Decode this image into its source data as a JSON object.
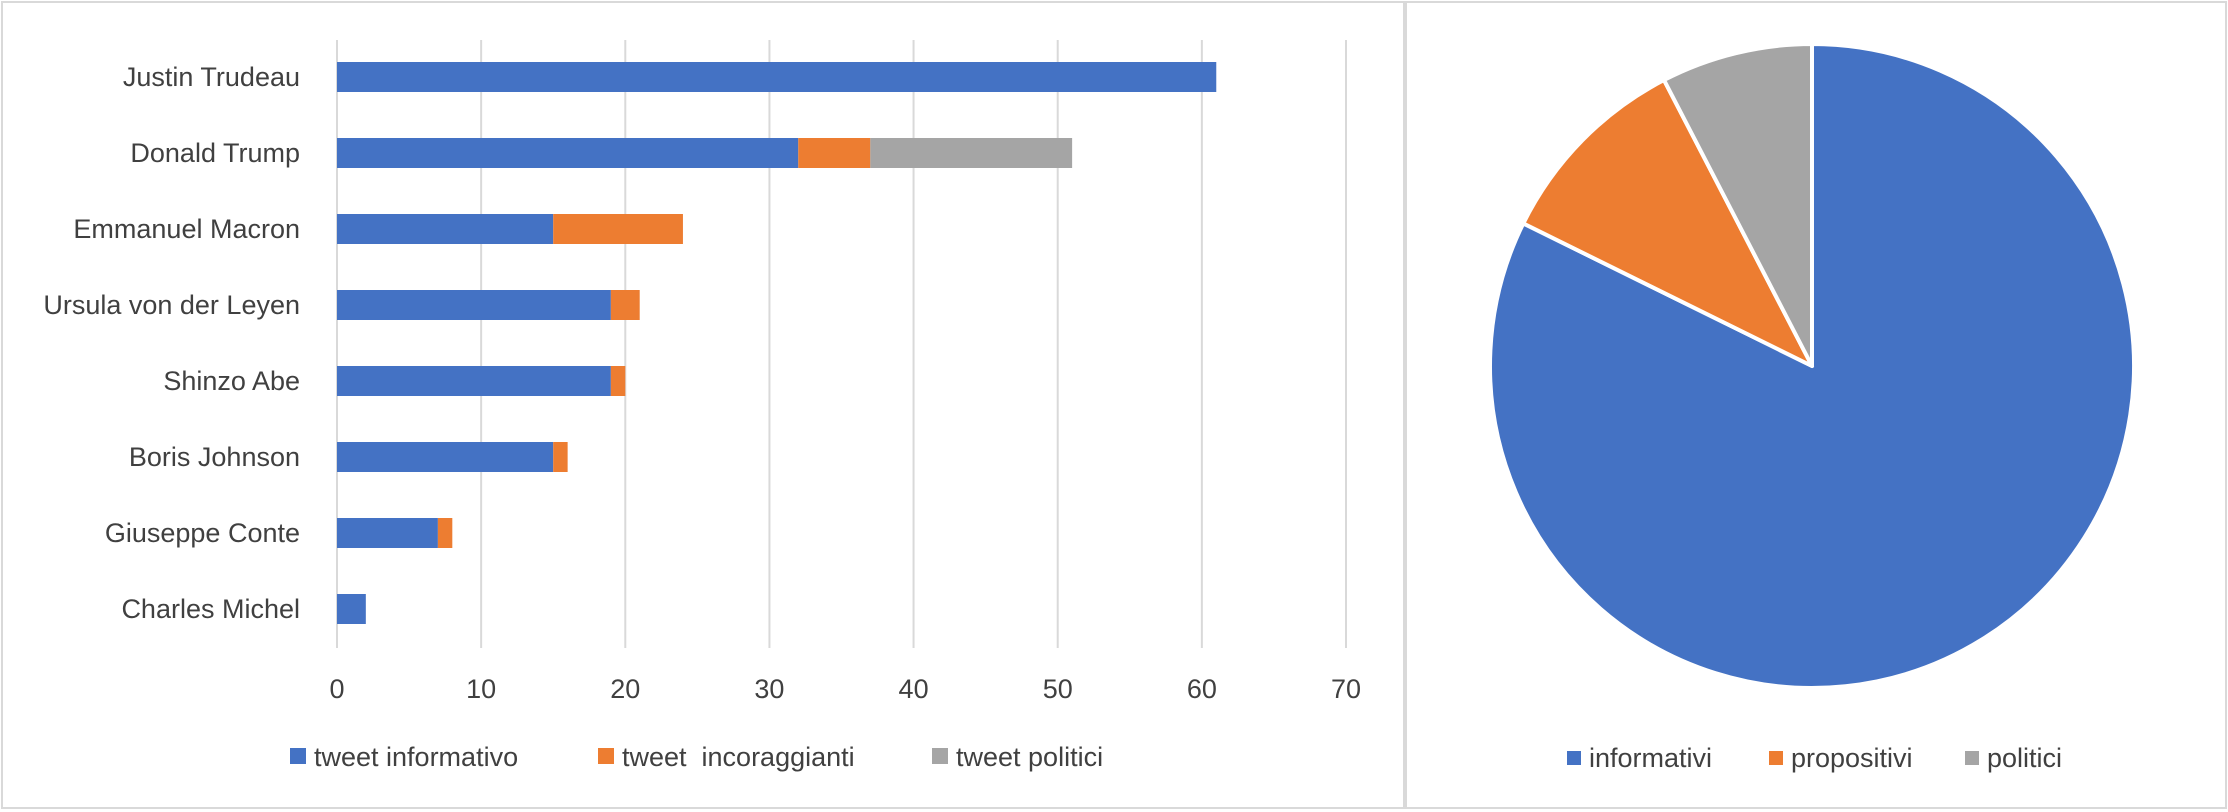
{
  "colors": {
    "blue": "#4472C4",
    "orange": "#ED7D31",
    "gray": "#A5A5A5",
    "gridline": "#D9D9D9",
    "text": "#404040",
    "border": "#D9D9D9"
  },
  "chart_data": [
    {
      "type": "bar",
      "orientation": "horizontal",
      "stacked": true,
      "categories": [
        "Justin Trudeau",
        "Donald Trump",
        "Emmanuel Macron",
        "Ursula von der Leyen",
        "Shinzo Abe",
        "Boris Johnson",
        "Giuseppe Conte",
        "Charles Michel"
      ],
      "series": [
        {
          "name": "tweet informativo",
          "color": "#4472C4",
          "values": [
            61,
            32,
            15,
            19,
            19,
            15,
            7,
            2
          ]
        },
        {
          "name": "tweet  incoraggianti",
          "color": "#ED7D31",
          "values": [
            0,
            5,
            9,
            2,
            1,
            1,
            1,
            0
          ]
        },
        {
          "name": "tweet politici",
          "color": "#A5A5A5",
          "values": [
            0,
            14,
            0,
            0,
            0,
            0,
            0,
            0
          ]
        }
      ],
      "xlim": [
        0,
        70
      ],
      "xticks": [
        "0",
        "10",
        "20",
        "30",
        "40",
        "50",
        "60",
        "70"
      ],
      "grid": true,
      "legend": "bottom",
      "title": "",
      "xlabel": "",
      "ylabel": ""
    },
    {
      "type": "pie",
      "categories": [
        "informativi",
        "propositivi",
        "politici"
      ],
      "values": [
        82.3,
        10.1,
        7.6
      ],
      "colors": [
        "#4472C4",
        "#ED7D31",
        "#A5A5A5"
      ],
      "legend": "bottom",
      "title": ""
    }
  ]
}
